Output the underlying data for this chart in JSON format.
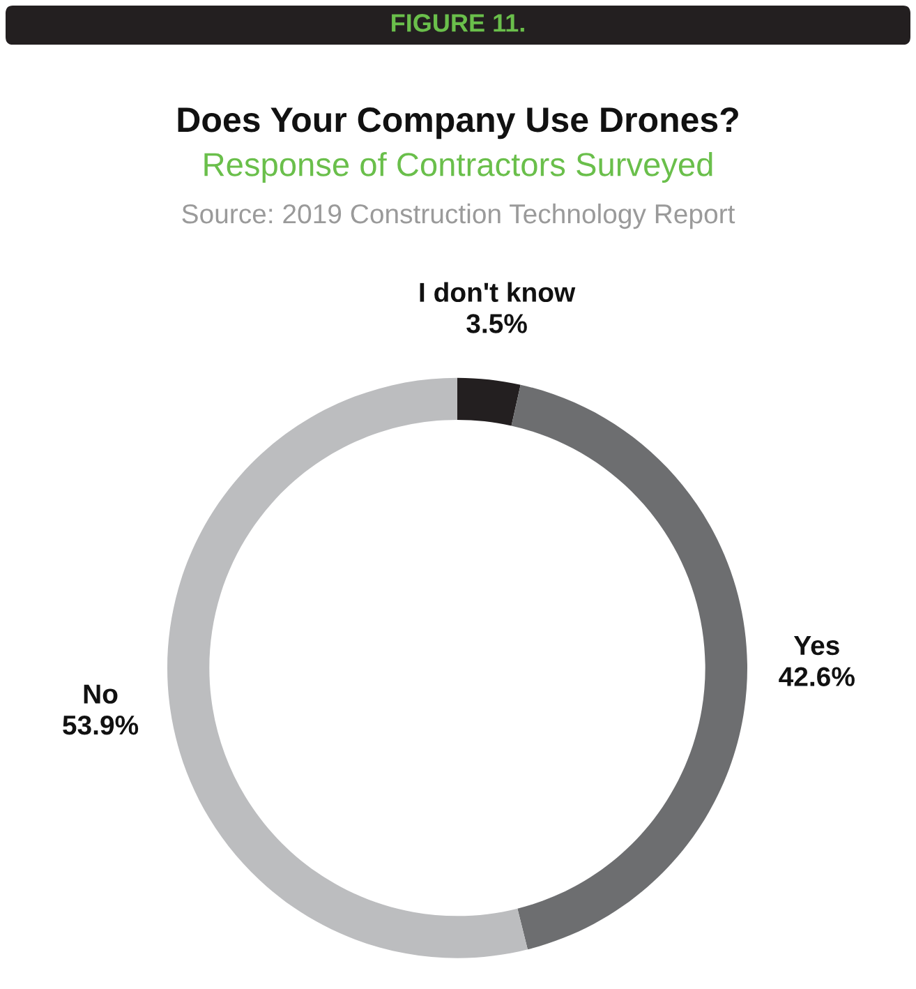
{
  "chart_data": {
    "type": "donut",
    "title": "Does Your Company Use Drones?",
    "subtitle": "Response of Contractors Surveyed",
    "annotations": [
      "FIGURE 11.",
      "Source: 2019 Construction Technology Report"
    ],
    "categories": [
      "I don't know",
      "Yes",
      "No"
    ],
    "values": [
      3.5,
      42.6,
      53.9
    ],
    "colors": [
      "#231f20",
      "#6d6e70",
      "#bcbdbf"
    ],
    "value_labels": [
      "3.5%",
      "42.6%",
      "53.9%"
    ],
    "legend": false
  }
}
